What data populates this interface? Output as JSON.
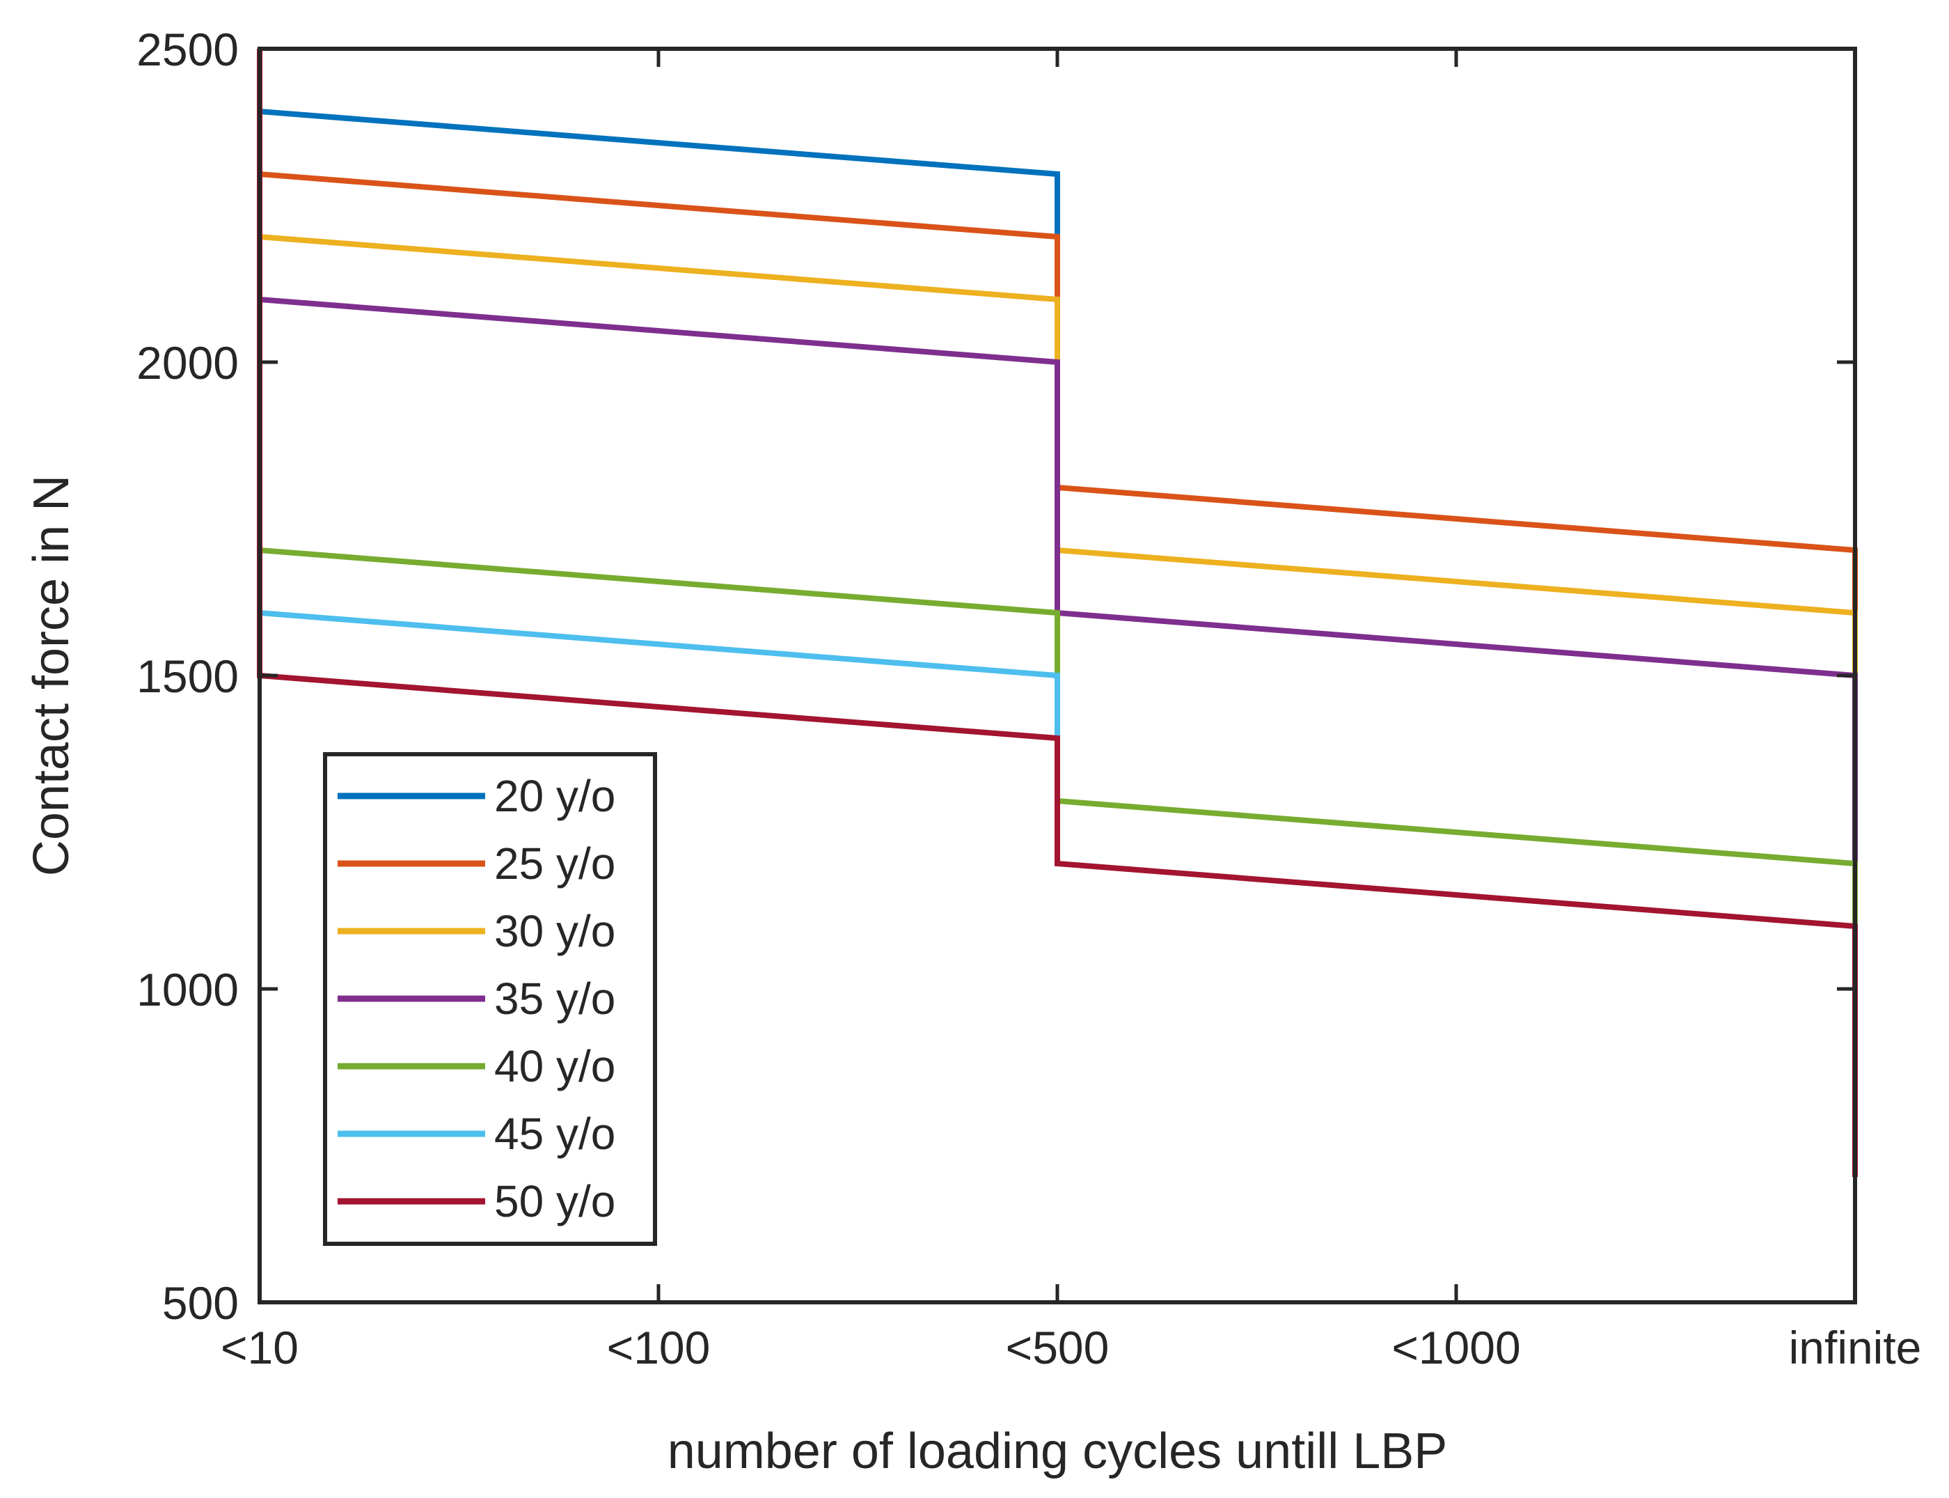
{
  "chart_data": {
    "type": "line",
    "title": "",
    "xlabel": "number of loading cycles untill LBP",
    "ylabel": "Contact force in N",
    "categories": [
      "<10",
      "<100",
      "<500",
      "<1000",
      "infinite"
    ],
    "ylim": [
      500,
      2500
    ],
    "yticks": [
      500,
      1000,
      1500,
      2000,
      2500
    ],
    "grid": false,
    "legend_position": "bottom-left",
    "series": [
      {
        "name": "20 y/o",
        "color": "#0072BD",
        "points": [
          [
            0,
            2500
          ],
          [
            0,
            2400
          ],
          [
            2,
            2300
          ],
          [
            2,
            2200
          ]
        ]
      },
      {
        "name": "25 y/o",
        "color": "#D95319",
        "points": [
          [
            0,
            2400
          ],
          [
            0,
            2300
          ],
          [
            2,
            2200
          ],
          [
            2,
            1800
          ],
          [
            4,
            1700
          ],
          [
            4,
            1600
          ]
        ]
      },
      {
        "name": "30 y/o",
        "color": "#EDB120",
        "points": [
          [
            0,
            2300
          ],
          [
            0,
            2200
          ],
          [
            2,
            2100
          ],
          [
            2,
            1700
          ],
          [
            4,
            1600
          ],
          [
            4,
            1500
          ]
        ]
      },
      {
        "name": "35 y/o",
        "color": "#7E2F8E",
        "points": [
          [
            0,
            2200
          ],
          [
            0,
            2100
          ],
          [
            2,
            2000
          ],
          [
            2,
            1600
          ],
          [
            4,
            1500
          ],
          [
            4,
            1200
          ]
        ]
      },
      {
        "name": "40 y/o",
        "color": "#77AC30",
        "points": [
          [
            0,
            2100
          ],
          [
            0,
            1700
          ],
          [
            2,
            1600
          ],
          [
            2,
            1300
          ],
          [
            4,
            1200
          ],
          [
            4,
            1100
          ]
        ]
      },
      {
        "name": "45 y/o",
        "color": "#4DBEEE",
        "points": [
          [
            0,
            1700
          ],
          [
            0,
            1600
          ],
          [
            2,
            1500
          ],
          [
            2,
            1400
          ]
        ]
      },
      {
        "name": "50 y/o",
        "color": "#A2142F",
        "points": [
          [
            0,
            2500
          ],
          [
            0,
            1500
          ],
          [
            2,
            1400
          ],
          [
            2,
            1200
          ],
          [
            4,
            1100
          ],
          [
            4,
            700
          ]
        ]
      }
    ]
  }
}
